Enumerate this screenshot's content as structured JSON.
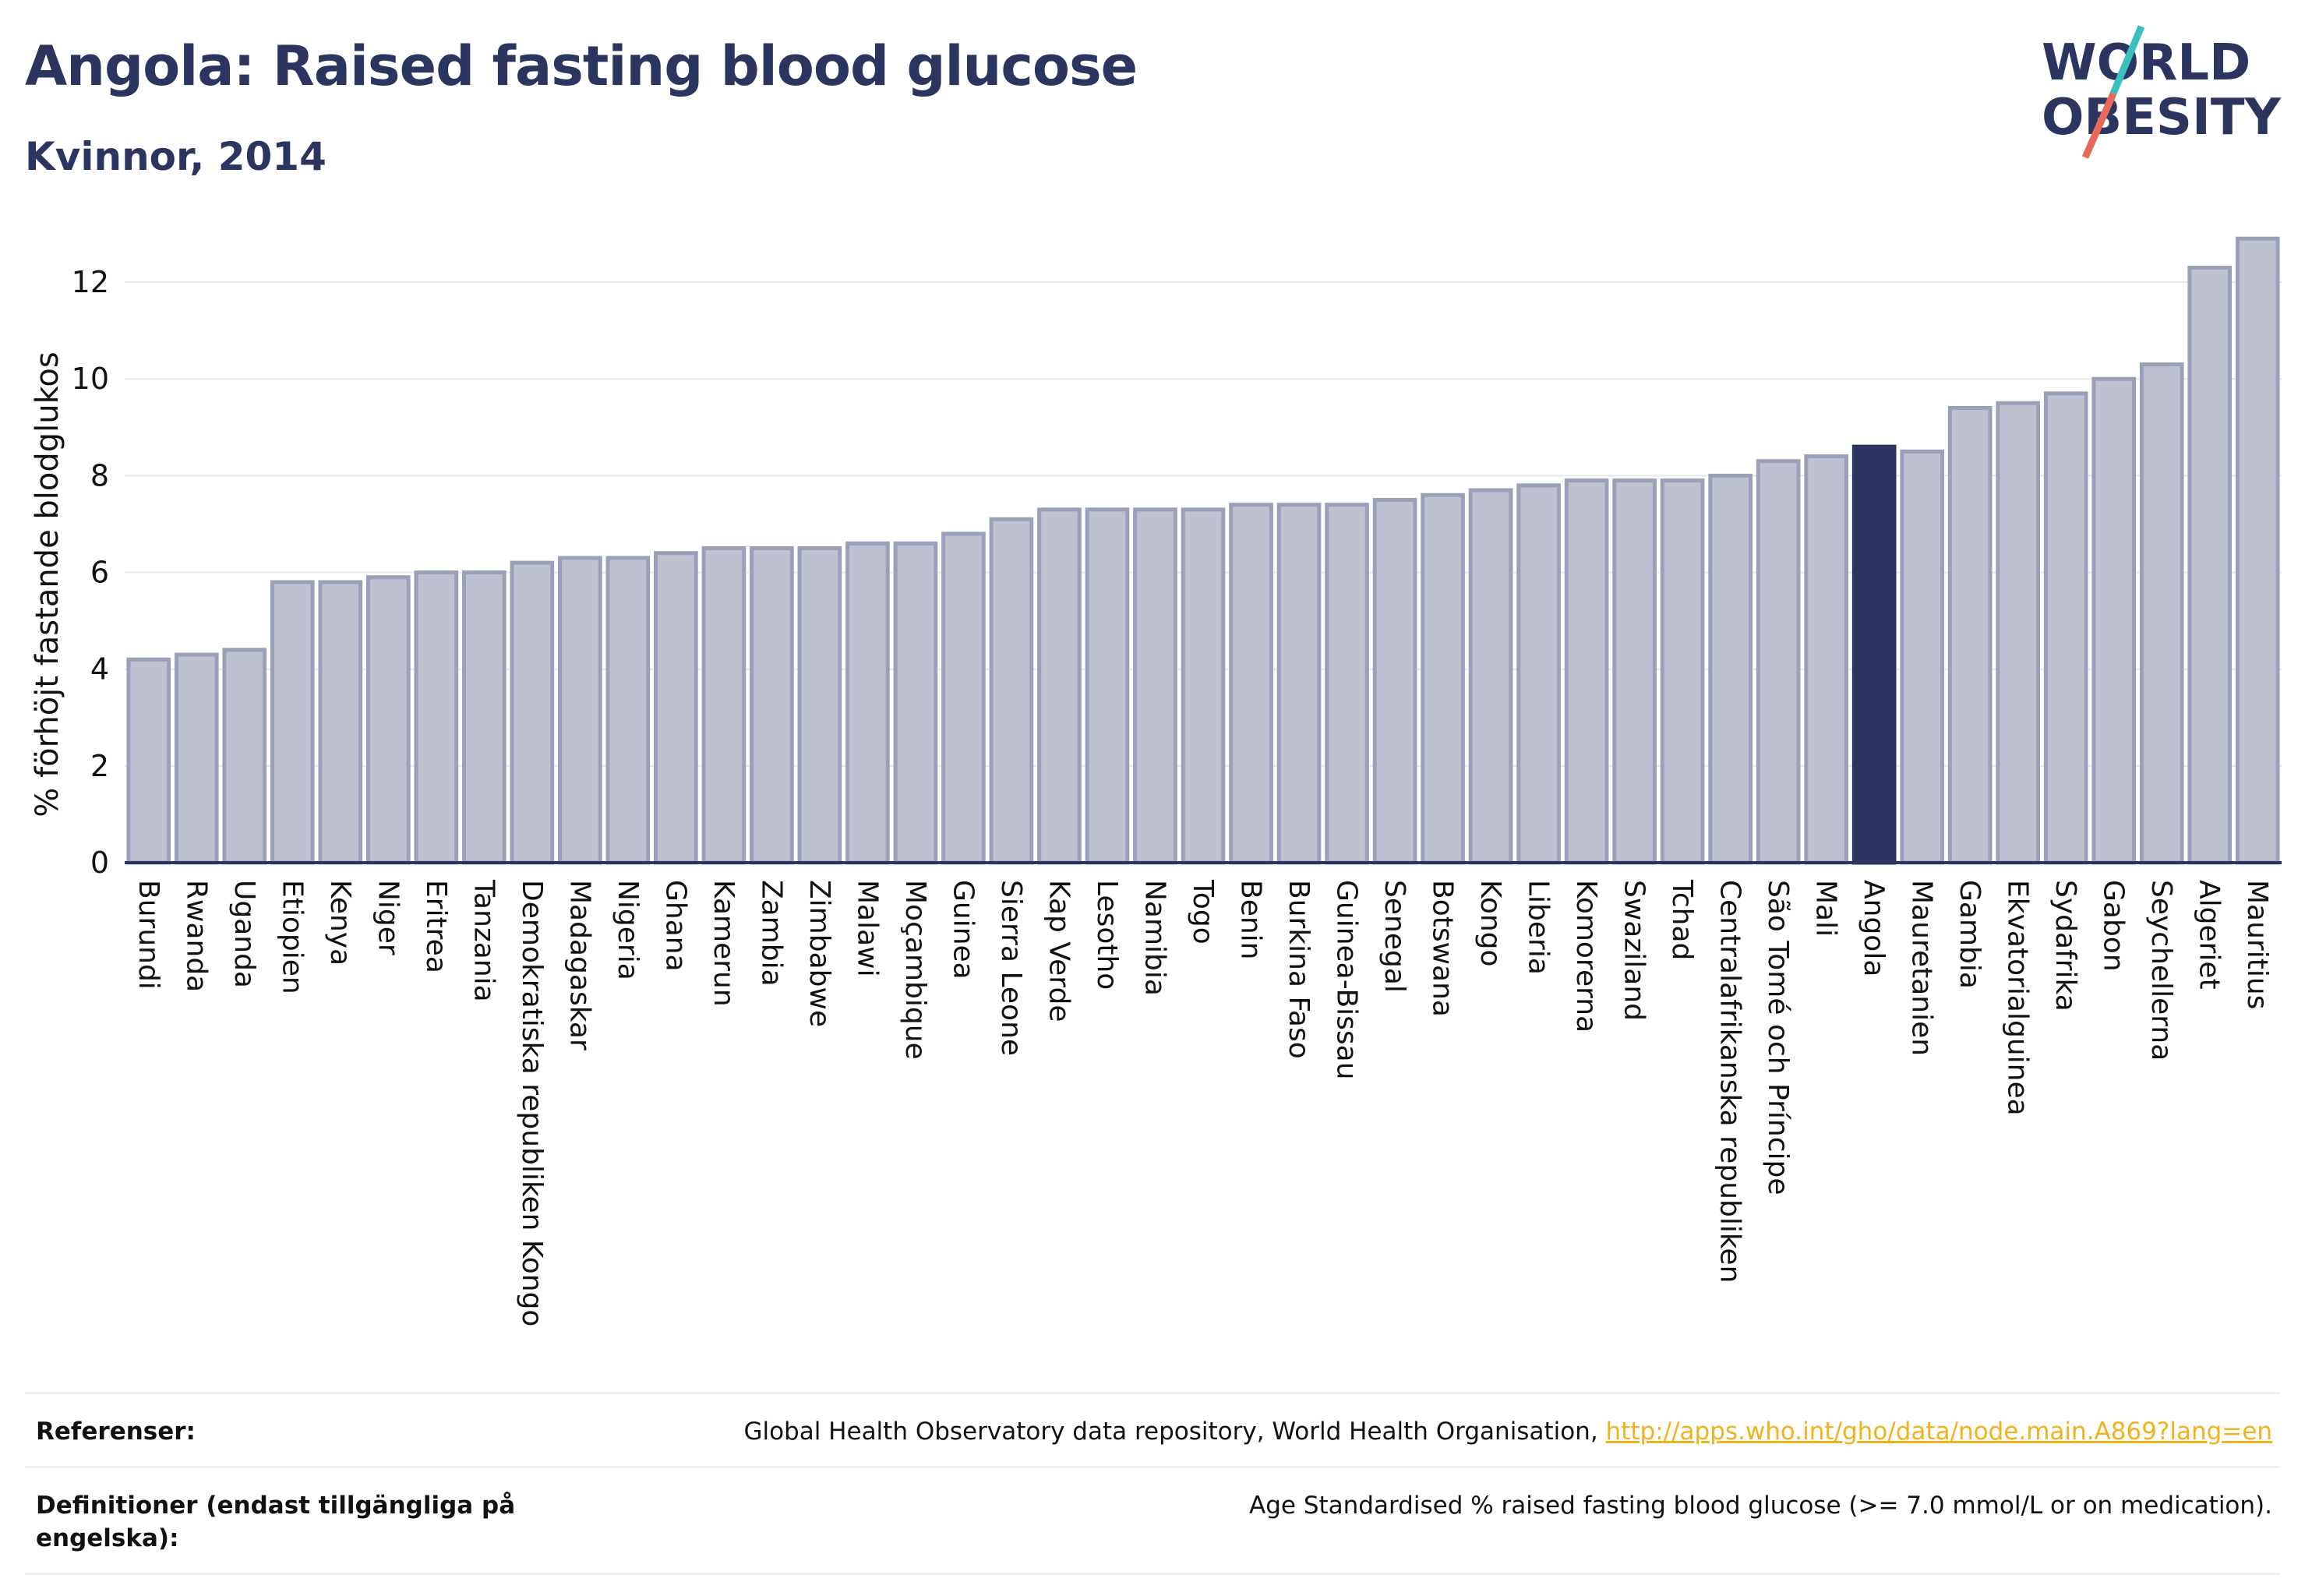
{
  "header": {
    "title": "Angola: Raised fasting blood glucose",
    "subtitle": "Kvinnor, 2014"
  },
  "logo": {
    "line1": "WORLD",
    "line2": "OBESITY"
  },
  "colors": {
    "bar": "#bdc1d0",
    "bar_stroke": "#9aa0b8",
    "highlight": "#2c3560",
    "grid": "#e6e8ef",
    "text": "#2c3560",
    "link": "#f1b21d",
    "logo_teal": "#3cbfbf",
    "logo_red": "#e8685a"
  },
  "chart_data": {
    "type": "bar",
    "title": "Angola: Raised fasting blood glucose",
    "subtitle": "Kvinnor, 2014",
    "xlabel": "",
    "ylabel": "% förhöjt fastande blodglukos",
    "ylim": [
      0,
      13
    ],
    "yticks": [
      0,
      2,
      4,
      6,
      8,
      10,
      12
    ],
    "grid": true,
    "highlight": "Angola",
    "categories": [
      "Burundi",
      "Rwanda",
      "Uganda",
      "Etiopien",
      "Kenya",
      "Niger",
      "Eritrea",
      "Tanzania",
      "Demokratiska republiken Kongo",
      "Madagaskar",
      "Nigeria",
      "Ghana",
      "Kamerun",
      "Zambia",
      "Zimbabwe",
      "Malawi",
      "Moçambique",
      "Guinea",
      "Sierra Leone",
      "Kap Verde",
      "Lesotho",
      "Namibia",
      "Togo",
      "Benin",
      "Burkina Faso",
      "Guinea-Bissau",
      "Senegal",
      "Botswana",
      "Kongo",
      "Liberia",
      "Komorerna",
      "Swaziland",
      "Tchad",
      "Centralafrikanska republiken",
      "São Tomé och Príncipe",
      "Mali",
      "Angola",
      "Mauretanien",
      "Gambia",
      "Ekvatorialguinea",
      "Sydafrika",
      "Gabon",
      "Seychellerna",
      "Algeriet",
      "Mauritius"
    ],
    "values": [
      4.2,
      4.3,
      4.4,
      5.8,
      5.8,
      5.9,
      6.0,
      6.0,
      6.2,
      6.3,
      6.3,
      6.4,
      6.5,
      6.5,
      6.5,
      6.6,
      6.6,
      6.8,
      7.1,
      7.3,
      7.3,
      7.3,
      7.3,
      7.4,
      7.4,
      7.4,
      7.5,
      7.6,
      7.7,
      7.8,
      7.9,
      7.9,
      7.9,
      8.0,
      8.3,
      8.4,
      8.6,
      8.5,
      9.4,
      9.5,
      9.7,
      10.0,
      10.3,
      12.3,
      12.9
    ]
  },
  "footer": {
    "references_label": "Referenser:",
    "references_text": "Global Health Observatory data repository, World Health Organisation, ",
    "references_link": "http://apps.who.int/gho/data/node.main.A869?lang=en",
    "definitions_label": "Definitioner (endast tillgängliga på engelska):",
    "definitions_text": "Age Standardised % raised fasting blood glucose (>= 7.0 mmol/L or on medication)."
  }
}
